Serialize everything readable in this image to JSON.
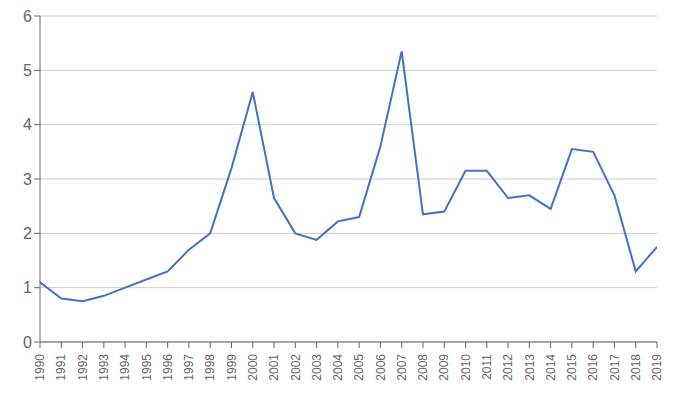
{
  "chart_data": {
    "type": "line",
    "x": [
      1990,
      1991,
      1992,
      1993,
      1994,
      1995,
      1996,
      1997,
      1998,
      1999,
      2000,
      2001,
      2002,
      2003,
      2004,
      2005,
      2006,
      2007,
      2008,
      2009,
      2010,
      2011,
      2012,
      2013,
      2014,
      2015,
      2016,
      2017,
      2018,
      2019
    ],
    "values": [
      1.1,
      0.8,
      0.75,
      0.85,
      1.0,
      1.15,
      1.3,
      1.7,
      2.0,
      3.2,
      4.6,
      2.65,
      2.0,
      1.88,
      2.22,
      2.3,
      3.6,
      5.35,
      2.35,
      2.4,
      3.15,
      3.15,
      2.65,
      2.7,
      2.45,
      3.55,
      3.5,
      2.7,
      1.3,
      1.75
    ],
    "color": "#4472C4",
    "xlim": [
      1990,
      2019
    ],
    "xticks": [
      1990,
      1991,
      1992,
      1993,
      1994,
      1995,
      1996,
      1997,
      1998,
      1999,
      2000,
      2001,
      2002,
      2003,
      2004,
      2005,
      2006,
      2007,
      2008,
      2009,
      2010,
      2011,
      2012,
      2013,
      2014,
      2015,
      2016,
      2017,
      2018,
      2019
    ],
    "ylim": [
      0,
      6
    ],
    "yticks": [
      0,
      1,
      2,
      3,
      4,
      5,
      6
    ],
    "grid": true
  }
}
